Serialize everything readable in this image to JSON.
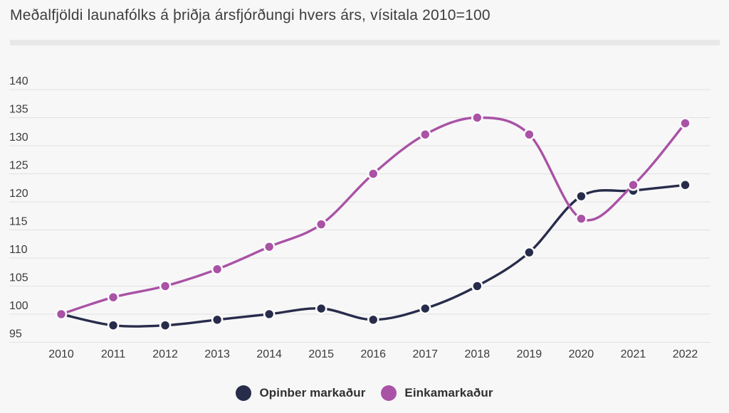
{
  "page": {
    "title": "Meðalfjöldi launafólks á þriðja ársfjórðungi hvers árs, vísitala 2010=100"
  },
  "colors": {
    "background": "#f7f7f7",
    "divider": "#e8e8e8",
    "grid": "#e1e1e1",
    "title_text": "#3d3d3d",
    "tick_text": "#3b3b3b",
    "public_series": "#282c4b",
    "private_series": "#a952a6",
    "point_halo": "#fcfcfc"
  },
  "chart_data": {
    "type": "line",
    "title": "Meðalfjöldi launafólks á þriðja ársfjórðungi hvers árs, vísitala 2010=100",
    "categories": [
      "2010",
      "2011",
      "2012",
      "2013",
      "2014",
      "2015",
      "2016",
      "2017",
      "2018",
      "2019",
      "2020",
      "2021",
      "2022"
    ],
    "series": [
      {
        "name": "Opinber markaður",
        "color": "#282c4b",
        "values": [
          100,
          98,
          98,
          99,
          100,
          101,
          99,
          101,
          105,
          111,
          121,
          122,
          123
        ]
      },
      {
        "name": "Einkamarkaður",
        "color": "#a952a6",
        "values": [
          100,
          103,
          105,
          108,
          112,
          116,
          125,
          132,
          135,
          132,
          117,
          123,
          134
        ]
      }
    ],
    "xlabel": "",
    "ylabel": "",
    "ylim": [
      95,
      140
    ],
    "ytick_step": 5,
    "grid": "horizontal-only",
    "legend_position": "bottom-center",
    "baseline_note": "vísitala 2010=100"
  }
}
